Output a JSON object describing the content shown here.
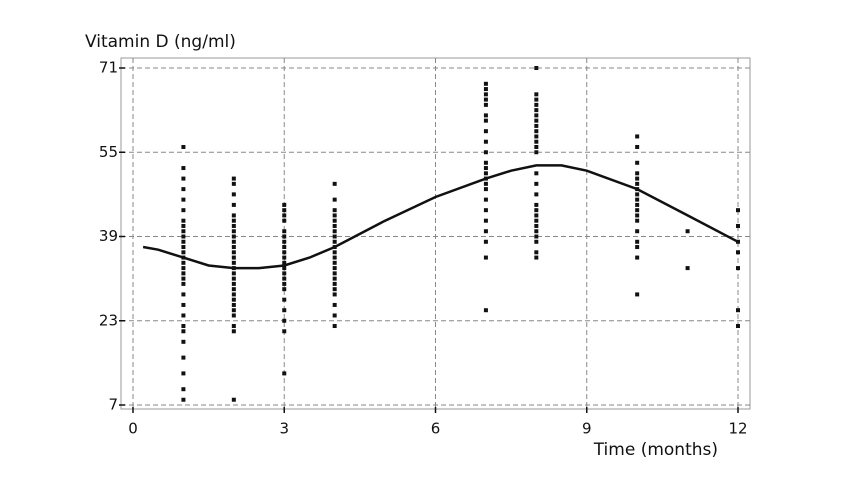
{
  "chart_data": {
    "type": "scatter",
    "y_label": "Vitamin D (ng/ml)",
    "x_label": "Time (months)",
    "xlim": [
      0,
      12
    ],
    "ylim": [
      7,
      71
    ],
    "xticks": [
      0,
      3,
      6,
      9,
      12
    ],
    "yticks": [
      7,
      23,
      39,
      55,
      71
    ],
    "grid": true,
    "point_color": "#111111",
    "line_color": "#111111",
    "groups": [
      {
        "x": 1,
        "values": [
          56,
          52,
          50,
          48,
          46,
          44,
          42,
          41,
          40,
          39,
          38,
          37,
          36,
          35,
          34,
          33,
          32,
          31,
          30,
          28,
          26,
          24,
          22,
          21,
          19,
          16,
          13,
          10,
          8
        ]
      },
      {
        "x": 2,
        "values": [
          50,
          49,
          47,
          45,
          43,
          42,
          41,
          40,
          39,
          38,
          37,
          36,
          35,
          34,
          33,
          32,
          31,
          30,
          29,
          28,
          27,
          26,
          25,
          24,
          22,
          21,
          8
        ]
      },
      {
        "x": 3,
        "values": [
          45,
          44,
          43,
          42,
          40,
          39,
          38,
          37,
          36,
          35,
          34,
          33,
          32,
          31,
          30,
          29,
          27,
          25,
          23,
          21,
          13
        ]
      },
      {
        "x": 4,
        "values": [
          49,
          46,
          44,
          43,
          42,
          41,
          40,
          39,
          38,
          37,
          36,
          35,
          34,
          33,
          32,
          31,
          30,
          29,
          28,
          26,
          24,
          22
        ]
      },
      {
        "x": 7,
        "values": [
          68,
          67,
          66,
          65,
          64,
          62,
          61,
          59,
          57,
          55,
          53,
          52,
          51,
          50,
          49,
          48,
          46,
          44,
          42,
          40,
          38,
          35,
          25
        ]
      },
      {
        "x": 8,
        "values": [
          71,
          66,
          65,
          64,
          63,
          62,
          61,
          60,
          59,
          58,
          57,
          56,
          55,
          51,
          49,
          47,
          45,
          44,
          43,
          42,
          41,
          40,
          39,
          38,
          36,
          35
        ]
      },
      {
        "x": 10,
        "values": [
          58,
          56,
          53,
          51,
          50,
          49,
          48,
          47,
          46,
          45,
          44,
          43,
          42,
          40,
          38,
          37,
          35,
          28
        ]
      },
      {
        "x": 11,
        "values": [
          40,
          33
        ]
      },
      {
        "x": 12,
        "values": [
          44,
          41,
          38,
          36,
          33,
          25,
          22
        ]
      }
    ],
    "fit": {
      "x": [
        0.2,
        0.5,
        1,
        1.5,
        2,
        2.5,
        3,
        3.5,
        4,
        5,
        6,
        7,
        7.5,
        8,
        8.5,
        9,
        10,
        11,
        12
      ],
      "values": [
        37,
        36.5,
        35,
        33.5,
        33,
        33,
        33.5,
        35,
        37,
        42,
        46.5,
        50,
        51.5,
        52.5,
        52.5,
        51.5,
        48,
        43,
        38
      ]
    }
  }
}
